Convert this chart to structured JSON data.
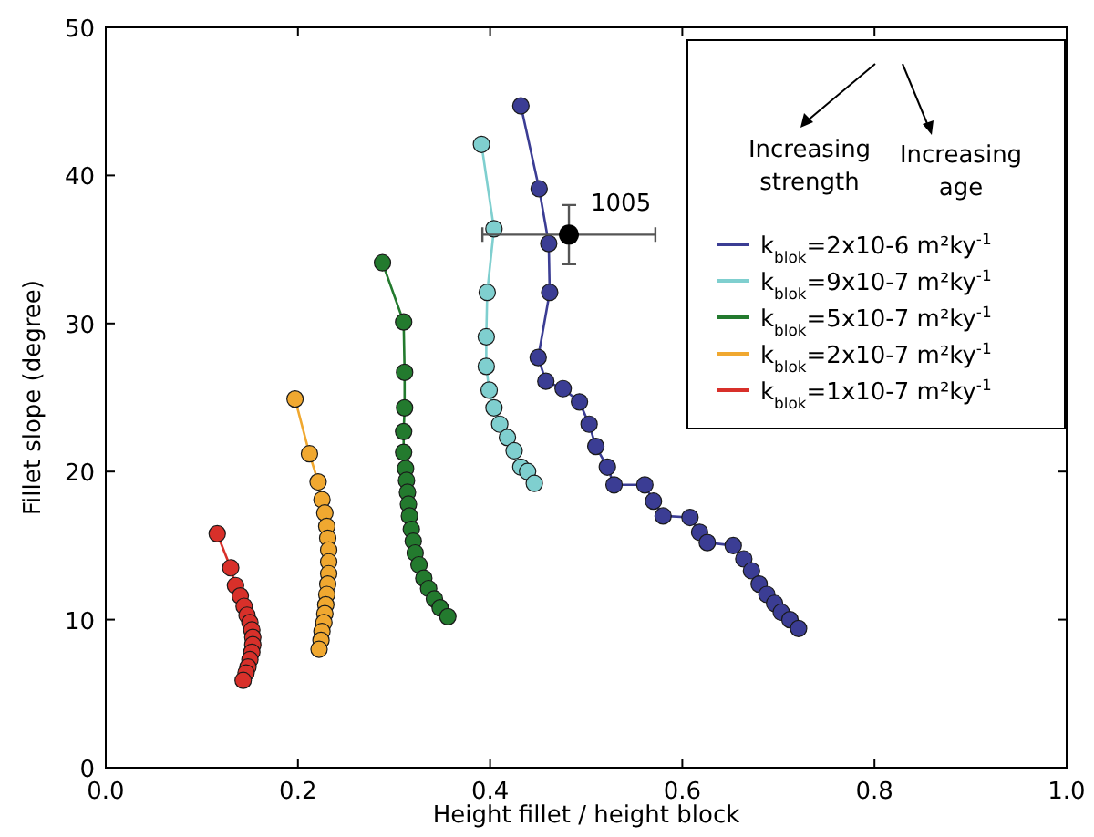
{
  "chart_data": {
    "type": "line",
    "xlabel": "Height fillet / height block",
    "ylabel": "Fillet slope (degree)",
    "xlim": [
      0,
      1
    ],
    "ylim": [
      0,
      50
    ],
    "xticks": [
      {
        "value": 0,
        "label": "0.0"
      },
      0.2,
      0.4,
      0.6,
      0.8,
      {
        "value": 1,
        "label": "1.0"
      }
    ],
    "yticks": [
      0,
      10,
      20,
      30,
      40,
      50
    ],
    "grid": false,
    "legend": "top right",
    "marker": "circle",
    "line_style": "solid",
    "annotations": [
      "Increasing strength",
      "Increasing age",
      {
        "text": "1005",
        "x": 0.482,
        "y": 36
      }
    ],
    "series": [
      {
        "name": "k$_{blok}$=2x10-6 m²ky$^{-1}$",
        "color": "#3b3d94",
        "x": [
          0.432,
          0.451,
          0.461,
          0.462,
          0.45,
          0.458,
          0.476,
          0.493,
          0.503,
          0.51,
          0.522,
          0.529,
          0.561,
          0.57,
          0.58,
          0.608,
          0.618,
          0.626,
          0.653,
          0.664,
          0.672,
          0.68,
          0.688,
          0.696,
          0.703,
          0.712,
          0.721
        ],
        "values": [
          44.7,
          39.1,
          35.4,
          32.1,
          27.7,
          26.1,
          25.6,
          24.7,
          23.2,
          21.7,
          20.3,
          19.1,
          19.1,
          18.0,
          17.0,
          16.9,
          15.9,
          15.2,
          15.0,
          14.1,
          13.3,
          12.4,
          11.7,
          11.1,
          10.5,
          10.0,
          9.4
        ]
      },
      {
        "name": "k$_{blok}$=9x10-7 m²ky$^{-1}$",
        "color": "#7fcfcf",
        "x": [
          0.391,
          0.404,
          0.397,
          0.396,
          0.396,
          0.399,
          0.404,
          0.41,
          0.418,
          0.425,
          0.432,
          0.439,
          0.446
        ],
        "values": [
          42.1,
          36.4,
          32.1,
          29.1,
          27.1,
          25.5,
          24.3,
          23.2,
          22.3,
          21.4,
          20.3,
          20.0,
          19.2
        ]
      },
      {
        "name": "k$_{blok}$=5x10-7 m²ky$^{-1}$",
        "color": "#237a2e",
        "x": [
          0.288,
          0.31,
          0.311,
          0.311,
          0.31,
          0.31,
          0.312,
          0.313,
          0.314,
          0.315,
          0.316,
          0.318,
          0.32,
          0.322,
          0.326,
          0.331,
          0.336,
          0.342,
          0.348,
          0.356
        ],
        "values": [
          34.1,
          30.1,
          26.7,
          24.3,
          22.7,
          21.3,
          20.2,
          19.4,
          18.6,
          17.8,
          17.0,
          16.1,
          15.3,
          14.5,
          13.7,
          12.8,
          12.1,
          11.4,
          10.8,
          10.2
        ]
      },
      {
        "name": "k$_{blok}$=2x10-7 m²ky$^{-1}$",
        "color": "#f0a830",
        "x": [
          0.197,
          0.212,
          0.221,
          0.225,
          0.228,
          0.23,
          0.231,
          0.232,
          0.232,
          0.232,
          0.231,
          0.23,
          0.229,
          0.228,
          0.227,
          0.225,
          0.224,
          0.222
        ],
        "values": [
          24.9,
          21.2,
          19.3,
          18.1,
          17.2,
          16.3,
          15.5,
          14.7,
          13.9,
          13.1,
          12.4,
          11.7,
          11.0,
          10.4,
          9.8,
          9.2,
          8.6,
          8.0
        ]
      },
      {
        "name": "k$_{blok}$=1x10-7 m²ky$^{-1}$",
        "color": "#d8302a",
        "x": [
          0.116,
          0.13,
          0.135,
          0.14,
          0.144,
          0.147,
          0.15,
          0.152,
          0.153,
          0.153,
          0.152,
          0.15,
          0.148,
          0.146,
          0.143
        ],
        "values": [
          15.8,
          13.5,
          12.3,
          11.6,
          10.9,
          10.3,
          9.8,
          9.3,
          8.8,
          8.3,
          7.8,
          7.3,
          6.8,
          6.4,
          5.9
        ]
      },
      {
        "type": "scatter",
        "color": "#000000",
        "x": [
          0.482
        ],
        "values": [
          36
        ],
        "errors": [
          2
        ],
        "xerrors": [
          0.09
        ]
      }
    ]
  }
}
